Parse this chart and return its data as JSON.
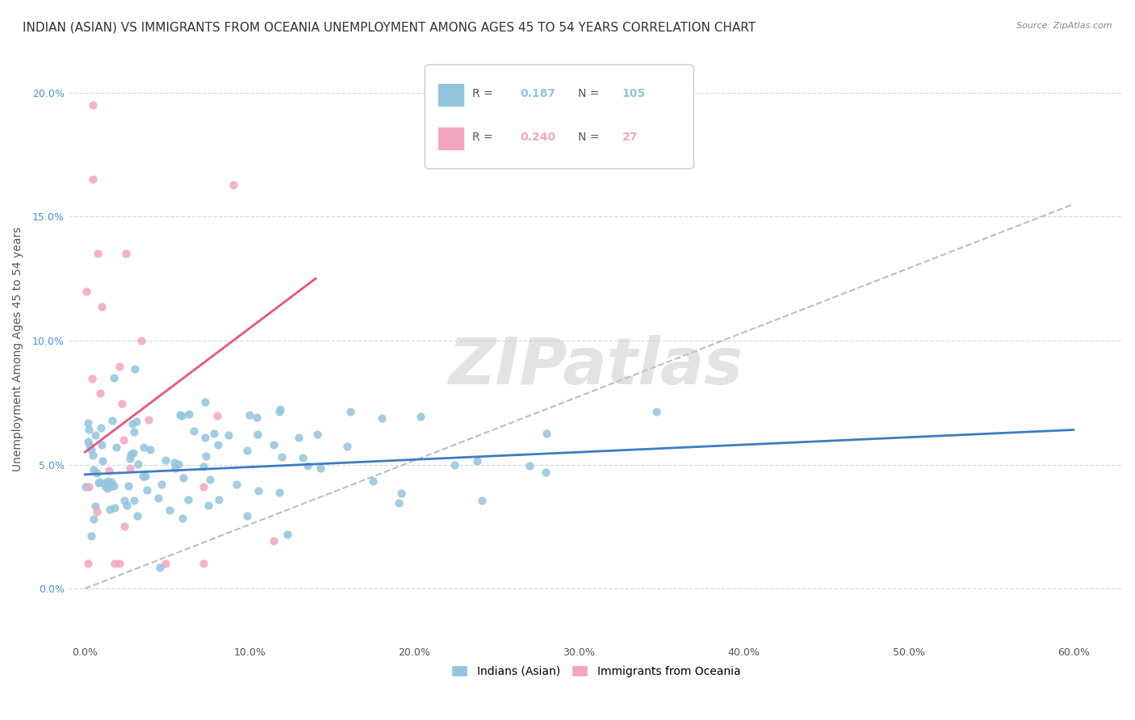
{
  "title": "INDIAN (ASIAN) VS IMMIGRANTS FROM OCEANIA UNEMPLOYMENT AMONG AGES 45 TO 54 YEARS CORRELATION CHART",
  "source": "Source: ZipAtlas.com",
  "ylabel": "Unemployment Among Ages 45 to 54 years",
  "xlabel_ticks": [
    "0.0%",
    "10.0%",
    "20.0%",
    "30.0%",
    "40.0%",
    "50.0%",
    "60.0%"
  ],
  "xlabel_vals": [
    0.0,
    0.1,
    0.2,
    0.3,
    0.4,
    0.5,
    0.6
  ],
  "ylabel_ticks": [
    "0.0%",
    "5.0%",
    "10.0%",
    "15.0%",
    "20.0%"
  ],
  "ylabel_vals": [
    0.0,
    0.05,
    0.1,
    0.15,
    0.2
  ],
  "xlim": [
    -0.01,
    0.63
  ],
  "ylim": [
    -0.022,
    0.215
  ],
  "R_blue": 0.187,
  "N_blue": 105,
  "R_pink": 0.24,
  "N_pink": 27,
  "blue_color": "#92c5de",
  "pink_color": "#f4a5c0",
  "blue_line_color": "#3d7dbf",
  "pink_line_color": "#e8567a",
  "trendline_gray_color": "#b8bfcc",
  "legend_label_blue": "Indians (Asian)",
  "legend_label_pink": "Immigrants from Oceania",
  "blue_trend_x": [
    0.0,
    0.6
  ],
  "blue_trend_y": [
    0.046,
    0.064
  ],
  "pink_trend_x": [
    0.0,
    0.14
  ],
  "pink_trend_y": [
    0.055,
    0.125
  ],
  "gray_trend_x": [
    0.0,
    0.6
  ],
  "gray_trend_y": [
    0.0,
    0.155
  ],
  "watermark": "ZIPatlas",
  "background_color": "#ffffff",
  "grid_color": "#d4dbe8",
  "title_fontsize": 11,
  "axis_label_fontsize": 10,
  "tick_fontsize": 9,
  "legend_fontsize": 10,
  "blue_seed": 42,
  "pink_seed": 7
}
